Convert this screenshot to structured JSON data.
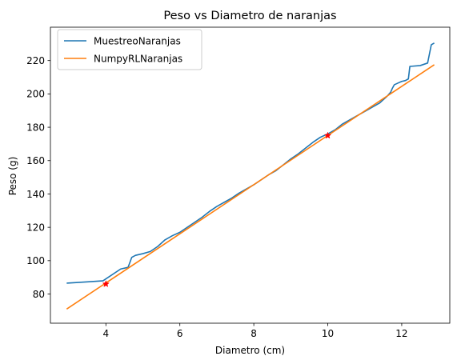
{
  "chart_data": {
    "type": "line",
    "title": "Peso vs Diametro de naranjas",
    "xlabel": "Diametro (cm)",
    "ylabel": "Peso (g)",
    "xlim": [
      2.5,
      13.3
    ],
    "ylim": [
      62.5,
      240.0
    ],
    "xticks": [
      4,
      6,
      8,
      10,
      12
    ],
    "yticks": [
      80,
      100,
      120,
      140,
      160,
      180,
      200,
      220
    ],
    "grid": false,
    "legend_position": "top-left",
    "series": [
      {
        "name": "MuestreoNaranjas",
        "color": "#1f77b4",
        "x": [
          2.94,
          3.2,
          3.5,
          3.92,
          4.4,
          4.6,
          4.7,
          4.8,
          5.0,
          5.2,
          5.4,
          5.6,
          5.8,
          6.0,
          6.2,
          6.4,
          6.6,
          6.8,
          7.0,
          7.2,
          7.4,
          7.6,
          7.8,
          8.0,
          8.2,
          8.4,
          8.6,
          8.8,
          9.0,
          9.2,
          9.4,
          9.6,
          9.8,
          10.0,
          10.2,
          10.4,
          10.6,
          10.8,
          11.0,
          11.2,
          11.4,
          11.6,
          11.7,
          11.75,
          11.8,
          11.9,
          12.0,
          12.1,
          12.18,
          12.22,
          12.5,
          12.7,
          12.8,
          12.88
        ],
        "y": [
          86.5,
          86.9,
          87.3,
          87.9,
          95.0,
          96.0,
          102.0,
          103.2,
          104.2,
          105.5,
          108.5,
          112.5,
          115.0,
          117.0,
          120.0,
          123.0,
          126.0,
          129.5,
          132.5,
          135.0,
          137.5,
          140.5,
          143.0,
          145.5,
          148.5,
          151.5,
          154.0,
          157.5,
          161.0,
          164.0,
          167.5,
          171.0,
          174.0,
          176.0,
          178.5,
          182.0,
          184.5,
          187.0,
          189.5,
          192.0,
          194.5,
          198.5,
          201.0,
          203.5,
          205.5,
          206.5,
          207.5,
          208.0,
          209.0,
          216.5,
          217.0,
          218.5,
          229.5,
          230.5
        ]
      },
      {
        "name": "NumpyRLNaranjas",
        "color": "#ff7f0e",
        "x": [
          2.94,
          12.88
        ],
        "y": [
          71.0,
          217.5
        ]
      }
    ],
    "markers": {
      "color": "#ff0000",
      "points": [
        {
          "x": 4.0,
          "y": 86.0
        },
        {
          "x": 10.0,
          "y": 175.0
        }
      ]
    }
  }
}
